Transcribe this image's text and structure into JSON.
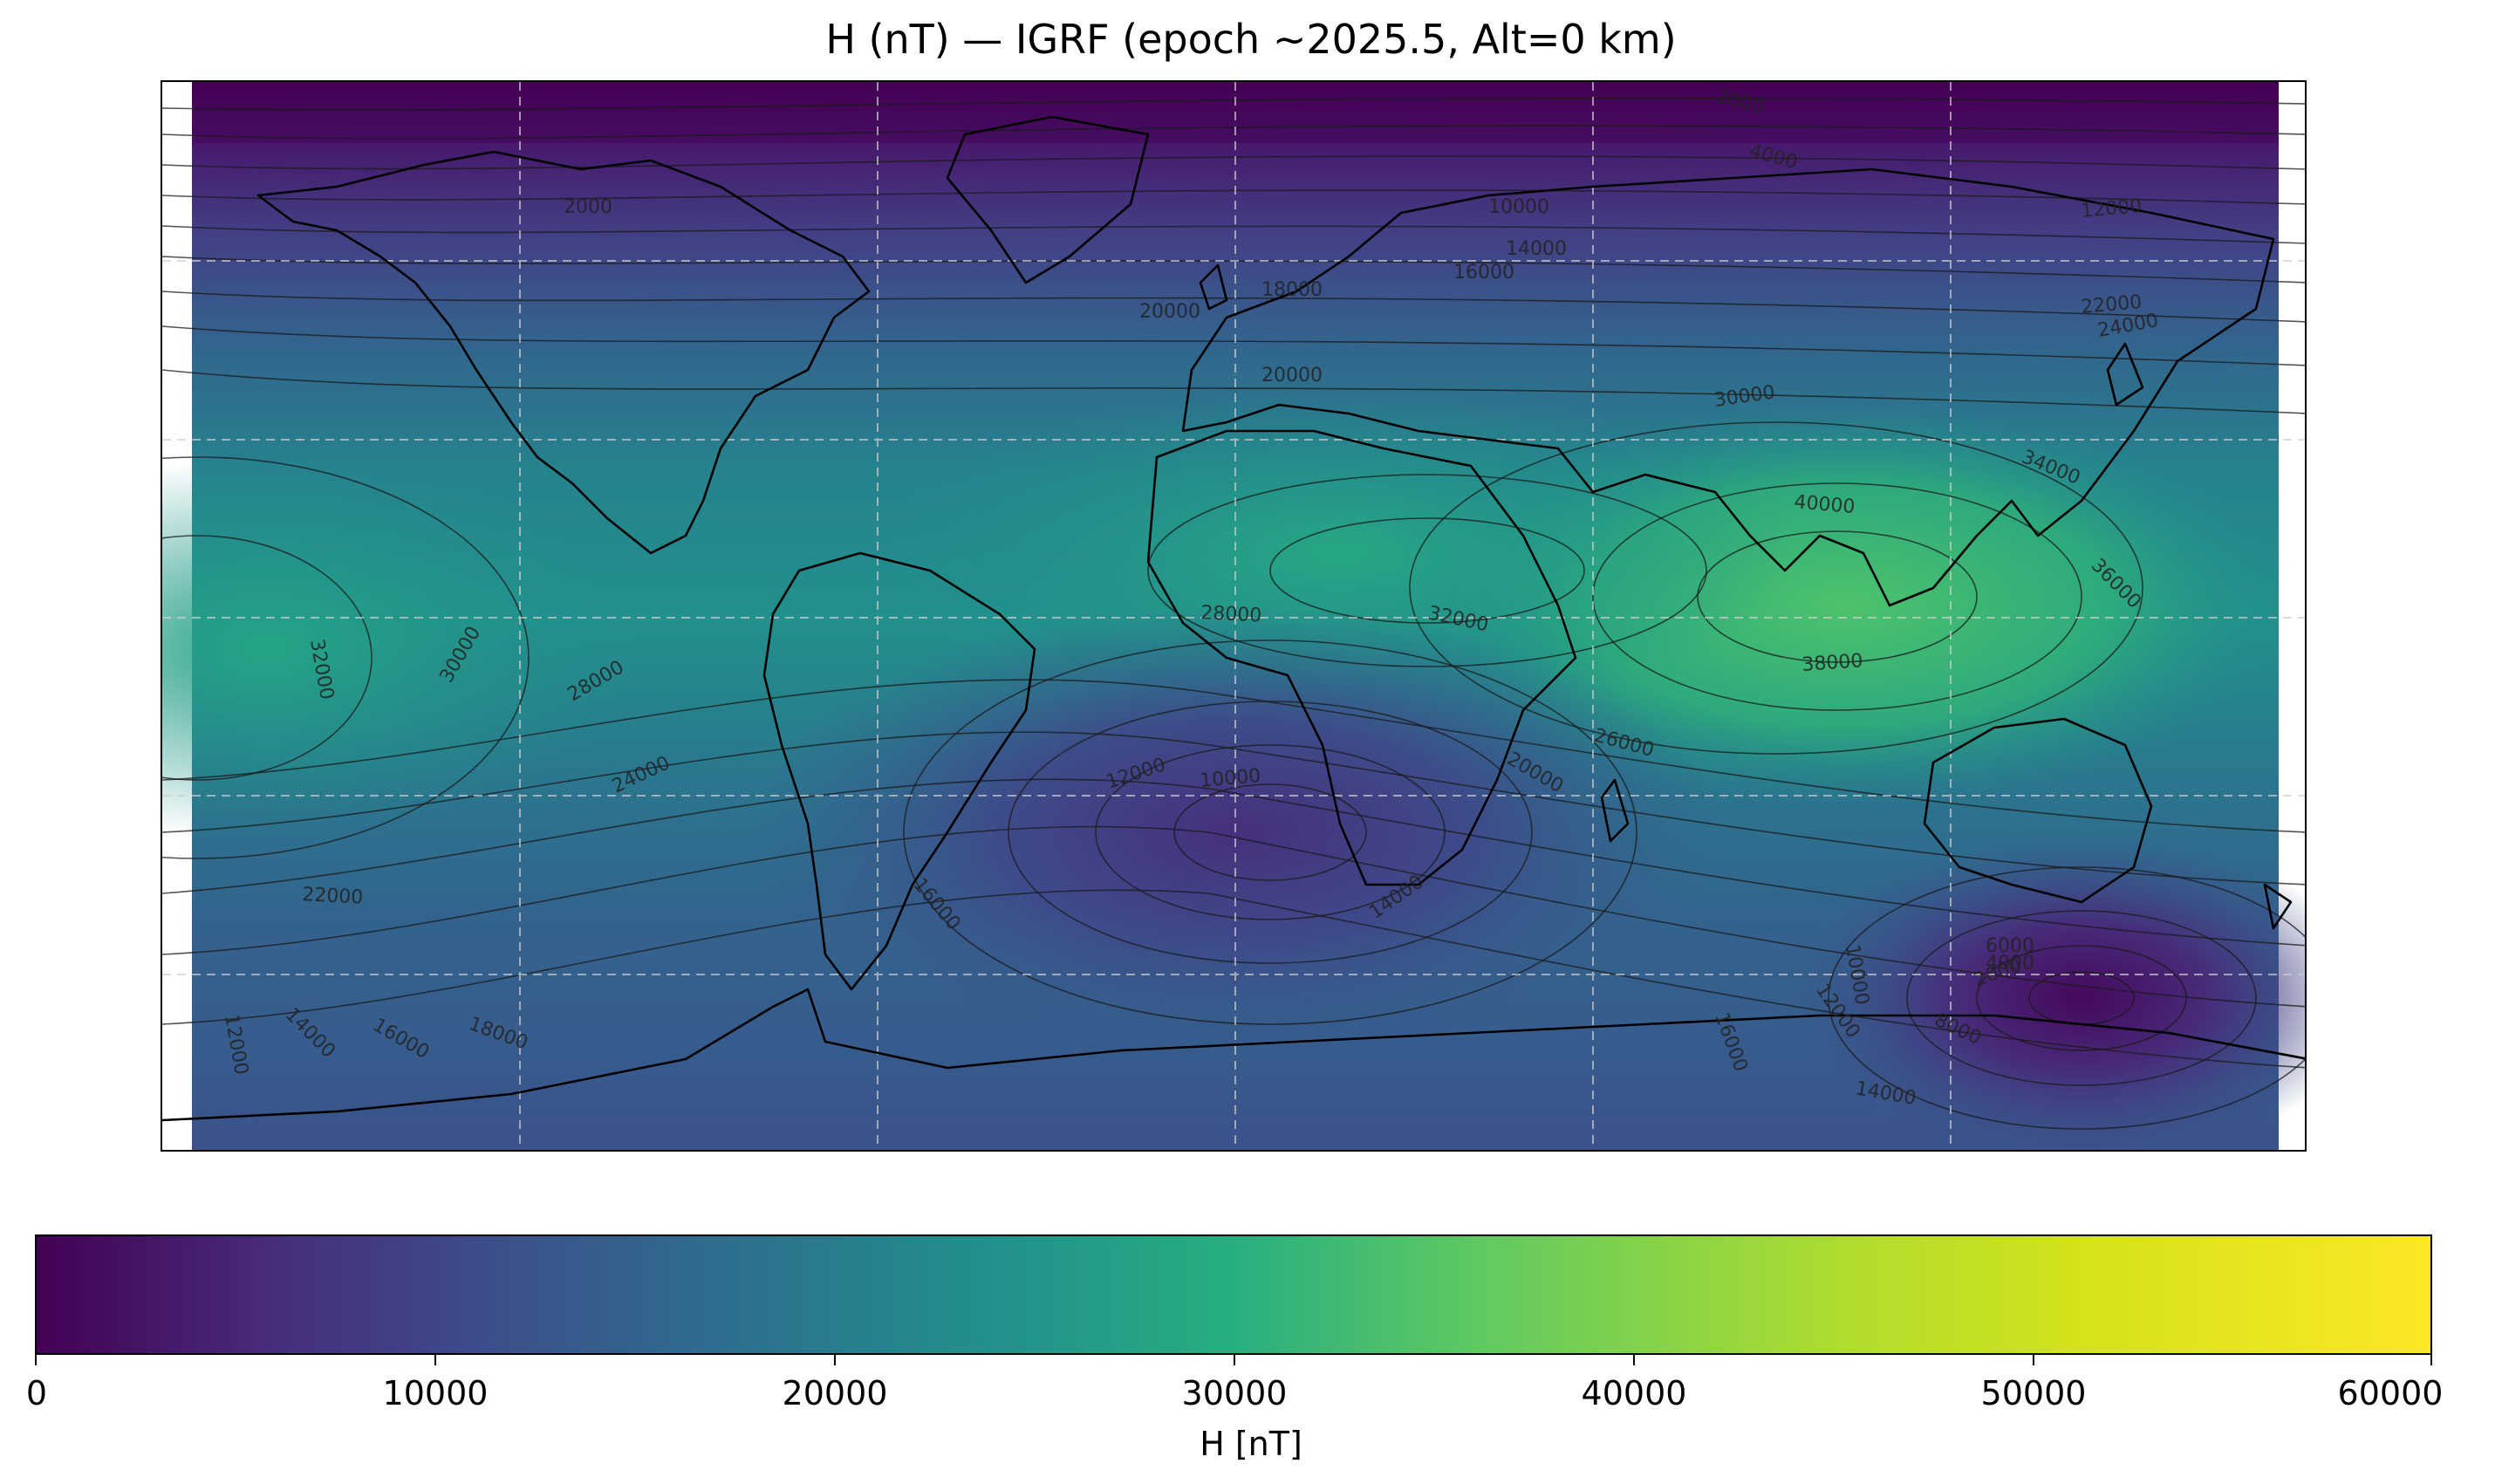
{
  "title": "H (nT) — IGRF (epoch ~2025.5, Alt=0 km)",
  "colorbar": {
    "label": "H [nT]",
    "range": [
      0,
      60000
    ],
    "ticks": [
      "0",
      "10000",
      "20000",
      "30000",
      "40000",
      "50000",
      "60000"
    ],
    "colormap": "viridis",
    "colors": [
      "#440154",
      "#3b528b",
      "#21918c",
      "#5ec962",
      "#fde725"
    ]
  },
  "map": {
    "projection": "plate-carree",
    "extent_lon": [
      -180,
      180
    ],
    "extent_lat": [
      -90,
      90
    ],
    "gridlines": true,
    "coastlines": true,
    "borders": true,
    "contour_labels": [
      "2000",
      "4000",
      "6000",
      "8000",
      "10000",
      "12000",
      "14000",
      "16000",
      "18000",
      "20000",
      "22000",
      "24000",
      "26000",
      "28000",
      "30000",
      "32000",
      "34000",
      "36000",
      "38000",
      "40000"
    ]
  }
}
